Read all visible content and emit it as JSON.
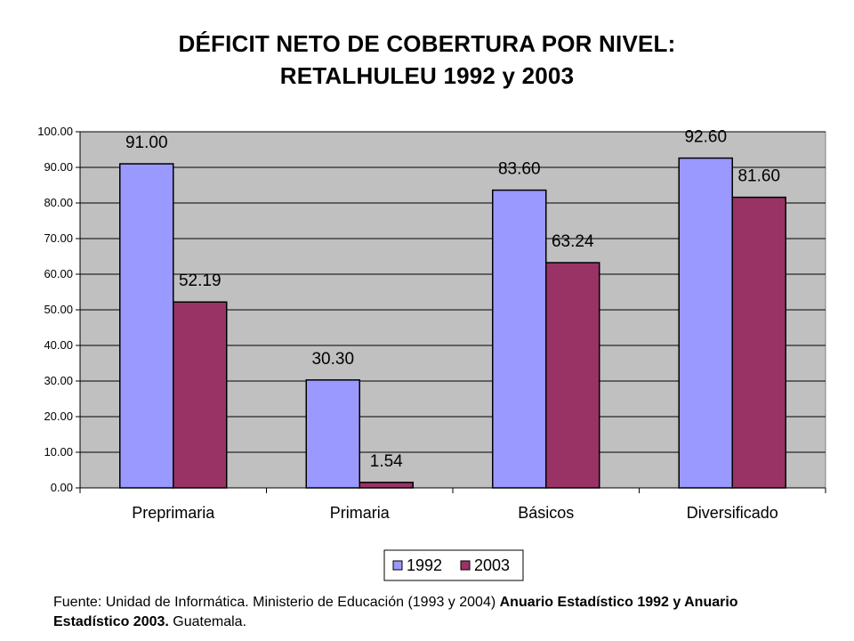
{
  "title_line1": "DÉFICIT NETO DE COBERTURA POR NIVEL:",
  "title_line2": "RETALHULEU 1992 y 2003",
  "chart_data": {
    "type": "bar",
    "title": "DÉFICIT NETO DE COBERTURA POR NIVEL: RETALHULEU 1992 y 2003",
    "categories": [
      "Preprimaria",
      "Primaria",
      "Básicos",
      "Diversificado"
    ],
    "series": [
      {
        "name": "1992",
        "values": [
          91.0,
          30.3,
          83.6,
          92.6
        ],
        "labels": [
          "91.00",
          "30.30",
          "83.60",
          "92.60"
        ],
        "color": "#9999ff"
      },
      {
        "name": "2003",
        "values": [
          52.19,
          1.54,
          63.24,
          81.6
        ],
        "labels": [
          "52.19",
          "1.54",
          "63.24",
          "81.60"
        ],
        "color": "#993366"
      }
    ],
    "ylim": [
      0,
      100
    ],
    "yticks": [
      "0.00",
      "10.00",
      "20.00",
      "30.00",
      "40.00",
      "50.00",
      "60.00",
      "70.00",
      "80.00",
      "90.00",
      "100.00"
    ],
    "plot_background": "#c0c0c0",
    "grid": true,
    "legend": "bottom-center",
    "xlabel": "",
    "ylabel": ""
  },
  "source": {
    "part1": "Fuente: Unidad de Informática. Ministerio de Educación (1993 y 2004) ",
    "bold1": "Anuario Estadístico 1992 y Anuario Estadístico 2003.",
    "part2": " Guatemala."
  }
}
